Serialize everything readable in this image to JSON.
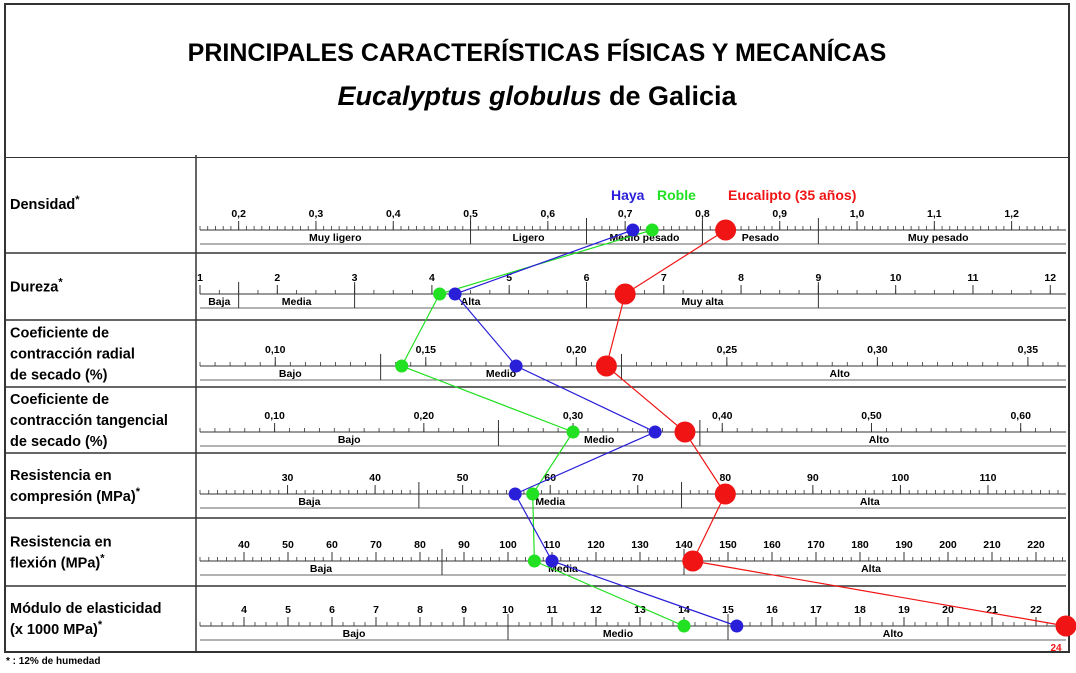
{
  "title": {
    "line1": "PRINCIPALES CARACTERÍSTICAS FÍSICAS Y MECANÍCAS",
    "species": "Eucalyptus globulus",
    "suffix": "de Galicia"
  },
  "footnote": "* : 12% de humedad",
  "legend": {
    "haya": "Haya",
    "roble": "Roble",
    "eucalipto": "Eucalipto (35 años)"
  },
  "colors": {
    "haya": "#2a1fd8",
    "roble": "#22e022",
    "eucalipto": "#f01414",
    "grid": "#333333"
  },
  "chart_data": {
    "type": "line",
    "series": [
      {
        "name": "Haya",
        "key": "haya"
      },
      {
        "name": "Roble",
        "key": "roble"
      },
      {
        "name": "Eucalipto (35 años)",
        "key": "eucalipto"
      }
    ],
    "rows": [
      {
        "label": [
          "Densidad"
        ],
        "star": true,
        "range": [
          0.15,
          1.26
        ],
        "major": [
          0.2,
          0.3,
          0.4,
          0.5,
          0.6,
          0.7,
          0.8,
          0.9,
          1.0,
          1.1,
          1.2
        ],
        "tick_labels": [
          "0,2",
          "0,3",
          "0,4",
          "0,5",
          "0,6",
          "0,7",
          "0,8",
          "0,9",
          "1,0",
          "1,1",
          "1,2"
        ],
        "minor_step": 0.01,
        "bounds": [
          0.5,
          0.65,
          0.8,
          0.95
        ],
        "classes": [
          "Muy ligero",
          "Ligero",
          "Medio pesado",
          "Pesado",
          "Muy pesado"
        ],
        "values": {
          "haya": 0.71,
          "roble": 0.735,
          "eucalipto": 0.83
        }
      },
      {
        "label": [
          "Dureza"
        ],
        "star": true,
        "range": [
          1,
          12.1
        ],
        "major": [
          1,
          2,
          3,
          4,
          5,
          6,
          7,
          8,
          9,
          10,
          11,
          12
        ],
        "tick_labels": [
          "1",
          "2",
          "3",
          "4",
          "5",
          "6",
          "7",
          "8",
          "9",
          "10",
          "11",
          "12"
        ],
        "minor_step": 0.25,
        "bounds": [
          1.5,
          3,
          6,
          9
        ],
        "classes": [
          "Baja",
          "Media",
          "Alta",
          "Muy alta"
        ],
        "values": {
          "haya": 4.3,
          "roble": 4.1,
          "eucalipto": 6.5
        }
      },
      {
        "label": [
          "Coeficiente de",
          "contracción radial",
          "de secado (%)"
        ],
        "star": false,
        "range": [
          0.075,
          0.36
        ],
        "major": [
          0.1,
          0.15,
          0.2,
          0.25,
          0.3,
          0.35
        ],
        "tick_labels": [
          "0,10",
          "0,15",
          "0,20",
          "0,25",
          "0,30",
          "0,35"
        ],
        "minor_step": 0.005,
        "bounds": [
          0.135,
          0.215
        ],
        "classes": [
          "Bajo",
          "Medio",
          "Alto"
        ],
        "values": {
          "haya": 0.18,
          "roble": 0.142,
          "eucalipto": 0.21
        }
      },
      {
        "label": [
          "Coeficiente de",
          "contracción tangencial",
          "de secado (%)"
        ],
        "star": false,
        "range": [
          0.05,
          0.625
        ],
        "major": [
          0.1,
          0.2,
          0.3,
          0.4,
          0.5,
          0.6
        ],
        "tick_labels": [
          "0,10",
          "0,20",
          "0,30",
          "0,40",
          "0,50",
          "0,60"
        ],
        "minor_step": 0.01,
        "bounds": [
          0.25,
          0.385
        ],
        "classes": [
          "Bajo",
          "Medio",
          "Alto"
        ],
        "values": {
          "haya": 0.355,
          "roble": 0.3,
          "eucalipto": 0.375
        }
      },
      {
        "label": [
          "Resistencia en",
          "compresión (MPa)"
        ],
        "star": true,
        "range": [
          20,
          118
        ],
        "major": [
          30,
          40,
          50,
          60,
          70,
          80,
          90,
          100,
          110
        ],
        "tick_labels": [
          "30",
          "40",
          "50",
          "60",
          "70",
          "80",
          "90",
          "100",
          "110"
        ],
        "minor_step": 1,
        "bounds": [
          45,
          75
        ],
        "classes": [
          "Baja",
          "Media",
          "Alta"
        ],
        "values": {
          "haya": 56,
          "roble": 58,
          "eucalipto": 80
        }
      },
      {
        "label": [
          "Resistencia en",
          "flexión (MPa)"
        ],
        "star": true,
        "range": [
          30,
          225
        ],
        "major": [
          40,
          50,
          60,
          70,
          80,
          90,
          100,
          110,
          120,
          130,
          140,
          150,
          160,
          170,
          180,
          190,
          200,
          210,
          220
        ],
        "tick_labels": [
          "40",
          "50",
          "60",
          "70",
          "80",
          "90",
          "100",
          "110",
          "120",
          "130",
          "140",
          "150",
          "160",
          "170",
          "180",
          "190",
          "200",
          "210",
          "220"
        ],
        "minor_step": 2,
        "bounds": [
          85,
          140
        ],
        "classes": [
          "Baja",
          "Media",
          "Alta"
        ],
        "values": {
          "haya": 110,
          "roble": 106,
          "eucalipto": 142
        }
      },
      {
        "label": [
          "Módulo de elasticidad",
          "(x 1000 MPa)"
        ],
        "star": true,
        "range": [
          3,
          22.5
        ],
        "major": [
          4,
          5,
          6,
          7,
          8,
          9,
          10,
          11,
          12,
          13,
          14,
          15,
          16,
          17,
          18,
          19,
          20,
          21,
          22
        ],
        "tick_labels": [
          "4",
          "5",
          "6",
          "7",
          "8",
          "9",
          "10",
          "11",
          "12",
          "13",
          "14",
          "15",
          "16",
          "17",
          "18",
          "19",
          "20",
          "21",
          "22"
        ],
        "minor_step": 0.25,
        "bounds": [
          10,
          15
        ],
        "classes": [
          "Bajo",
          "Medio",
          "Alto"
        ],
        "values": {
          "haya": 15.2,
          "roble": 14,
          "eucalipto": 24
        },
        "overflow_label": "24"
      }
    ]
  }
}
